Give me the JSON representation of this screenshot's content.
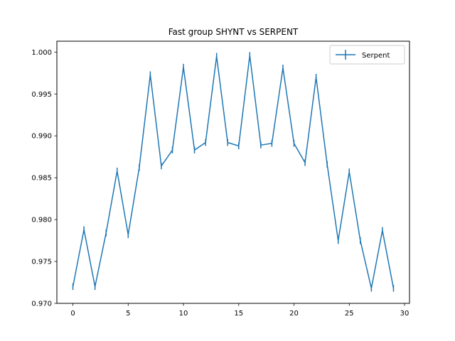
{
  "chart_data": {
    "type": "line",
    "title": "Fast group SHYNT vs SERPENT",
    "xlabel": "",
    "ylabel": "",
    "xlim": [
      -1.45,
      30.45
    ],
    "ylim": [
      0.97,
      1.0013
    ],
    "xticks": [
      0,
      5,
      10,
      15,
      20,
      25,
      30
    ],
    "yticks": [
      0.97,
      0.975,
      0.98,
      0.985,
      0.99,
      0.995,
      1.0
    ],
    "ytick_labels": [
      "0.970",
      "0.975",
      "0.980",
      "0.985",
      "0.990",
      "0.995",
      "1.000"
    ],
    "grid": false,
    "legend_placement": "top-right",
    "series": [
      {
        "name": "Serpent",
        "color": "#1f77b4",
        "x": [
          0,
          1,
          2,
          3,
          4,
          5,
          6,
          7,
          8,
          9,
          10,
          11,
          12,
          13,
          14,
          15,
          16,
          17,
          18,
          19,
          20,
          21,
          22,
          23,
          24,
          25,
          26,
          27,
          28,
          29
        ],
        "y": [
          0.972,
          0.9788,
          0.972,
          0.9784,
          0.9858,
          0.9782,
          0.9862,
          0.9973,
          0.9864,
          0.9883,
          0.9982,
          0.9883,
          0.9892,
          0.9995,
          0.9892,
          0.9888,
          0.9996,
          0.9889,
          0.9891,
          0.9981,
          0.9891,
          0.9868,
          0.997,
          0.9866,
          0.9775,
          0.9857,
          0.9775,
          0.9718,
          0.9787,
          0.9718
        ],
        "yerr": [
          0.0004,
          0.0004,
          0.0004,
          0.0004,
          0.0004,
          0.0004,
          0.0004,
          0.0004,
          0.0004,
          0.0004,
          0.0004,
          0.0004,
          0.0004,
          0.0004,
          0.0004,
          0.0004,
          0.0004,
          0.0004,
          0.0004,
          0.0004,
          0.0004,
          0.0004,
          0.0004,
          0.0004,
          0.0004,
          0.0004,
          0.0004,
          0.0004,
          0.0004,
          0.0004
        ]
      }
    ]
  }
}
